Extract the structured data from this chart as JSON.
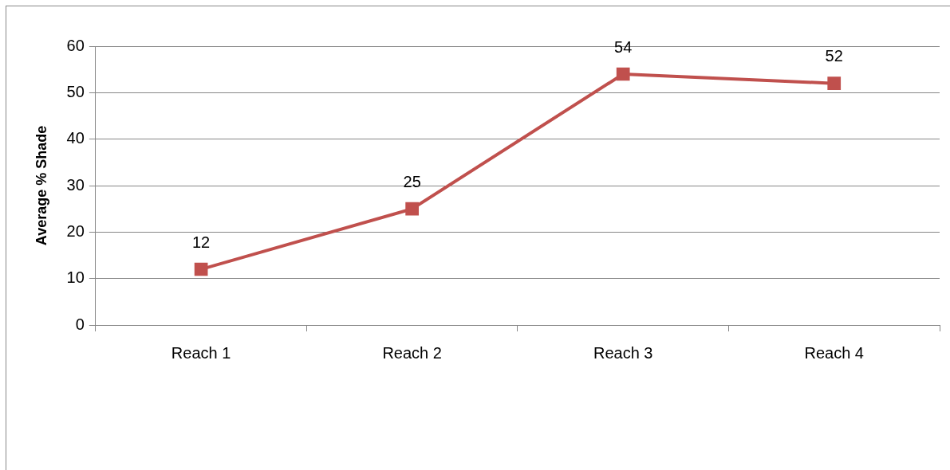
{
  "chart_data": {
    "type": "line",
    "ylabel": "Average % Shade",
    "categories": [
      "Reach 1",
      "Reach 2",
      "Reach 3",
      "Reach 4"
    ],
    "series": [
      {
        "color": "#c0504d",
        "values": [
          12,
          25,
          54,
          52
        ]
      }
    ],
    "ylim": [
      0,
      60
    ],
    "yticks": [
      0,
      10,
      20,
      30,
      40,
      50,
      60
    ],
    "grid": "y",
    "legend": false,
    "marker": "square",
    "line_style": "solid",
    "data_labels": true
  }
}
